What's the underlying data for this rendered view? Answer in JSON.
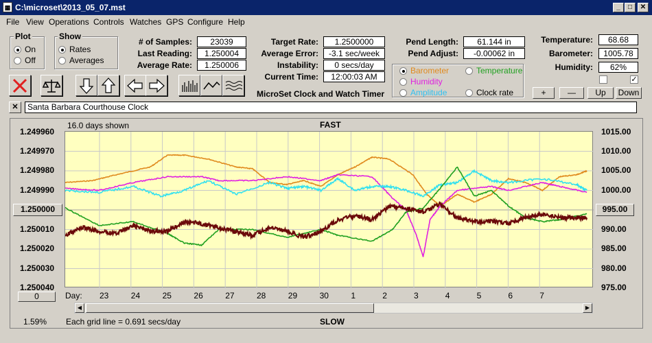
{
  "window": {
    "title": "C:\\microset\\2013_05_07.mst",
    "minimize": "_",
    "maximize": "□",
    "close": "✕"
  },
  "menu": [
    "File",
    "View",
    "Operations",
    "Controls",
    "Watches",
    "GPS",
    "Configure",
    "Help"
  ],
  "plot_group": {
    "label": "Plot",
    "on": "On",
    "off": "Off"
  },
  "show_group": {
    "label": "Show",
    "rates": "Rates",
    "averages": "Averages"
  },
  "stats": {
    "samples_label": "# of Samples:",
    "samples": "23039",
    "last_label": "Last Reading:",
    "last": "1.250004",
    "avg_rate_label": "Average Rate:",
    "avg_rate": "1.250006",
    "target_label": "Target Rate:",
    "target": "1.2500000",
    "avg_err_label": "Average Error:",
    "avg_err": "-3.1 sec/week",
    "instab_label": "Instability:",
    "instab": "0 secs/day",
    "time_label": "Current Time:",
    "time": "12:00:03 AM",
    "pend_len_label": "Pend Length:",
    "pend_len": "61.144 in",
    "pend_adj_label": "Pend Adjust:",
    "pend_adj": "-0.00062 in",
    "temp_label": "Temperature:",
    "temp": "68.68",
    "baro_label": "Barometer:",
    "baro": "1005.78",
    "hum_label": "Humidity:",
    "hum": "62%"
  },
  "app_caption": "MicroSet Clock and Watch Timer",
  "sensor_radios": {
    "barometer": "Barometer",
    "temperature": "Temperature",
    "humidity": "Humidity",
    "amplitude": "Amplitude",
    "clock_rate": "Clock rate"
  },
  "sensor_buttons": {
    "plus": "+",
    "minus": "—",
    "up": "Up",
    "down": "Down"
  },
  "clock_name": "Santa Barbara Courthouse Clock",
  "close_small": "✕",
  "colors": {
    "barometer": "#e08a1e",
    "humidity": "#e020e0",
    "amplitude": "#30e0f0",
    "temperature": "#20a020",
    "rate": "#6b0a0a"
  },
  "chart_data": {
    "type": "line",
    "top_label": "FAST",
    "bottom_label": "SLOW",
    "days_shown": "16.0 days shown",
    "grid_note": "Each grid line = 0.691 secs/day",
    "percent": "1.59%",
    "left_button": "1.250000",
    "right_button": "995.00",
    "bottom_button": "0",
    "day_label": "Day:",
    "days": [
      "23",
      "24",
      "25",
      "26",
      "27",
      "28",
      "29",
      "30",
      "1",
      "2",
      "3",
      "4",
      "5",
      "6",
      "7"
    ],
    "y_left": {
      "ticks": [
        "1.249960",
        "1.249970",
        "1.249980",
        "1.249990",
        "1.250000",
        "1.250010",
        "1.250020",
        "1.250030",
        "1.250040"
      ],
      "ylim": [
        1.24996,
        1.25004
      ]
    },
    "y_right": {
      "ticks": [
        "1015.00",
        "1010.00",
        "1005.00",
        "1000.00",
        "995.00",
        "990.00",
        "985.00",
        "980.00",
        "975.00"
      ],
      "ylim": [
        975,
        1015
      ]
    },
    "series": [
      {
        "name": "Barometer",
        "axis": "right",
        "color": "#e08a1e",
        "x": [
          0,
          0.8,
          1.5,
          2.5,
          3.0,
          3.5,
          4.2,
          5.0,
          5.5,
          6.0,
          6.5,
          7.0,
          7.5,
          8.0,
          8.5,
          9.0,
          9.5,
          10.2,
          10.6,
          11.0,
          11.5,
          12.0,
          12.5,
          13.0,
          13.5,
          14.0,
          14.5,
          15.0,
          15.3
        ],
        "y": [
          1002,
          1002.5,
          1004,
          1006,
          1009,
          1009,
          1008,
          1006,
          1005.5,
          1002,
          1001.5,
          1002.5,
          1001,
          1004,
          1006,
          1008.5,
          1008,
          1004,
          999,
          996,
          999,
          997,
          999,
          1003,
          1002,
          1000,
          1003.5,
          1004,
          1005
        ]
      },
      {
        "name": "Humidity",
        "axis": "left",
        "color": "#e020e0",
        "x": [
          0,
          1.0,
          2.0,
          3.0,
          4.0,
          4.5,
          5.5,
          6.5,
          7.5,
          8.0,
          9.0,
          9.6,
          10.0,
          10.3,
          10.5,
          10.7,
          11.0,
          11.5,
          12.5,
          13.0,
          14.0,
          14.5,
          15.3
        ],
        "y": [
          1.249989,
          1.24999,
          1.249986,
          1.249983,
          1.249983,
          1.249985,
          1.249985,
          1.249983,
          1.249985,
          1.249982,
          1.249983,
          1.249994,
          1.25,
          1.250013,
          1.250024,
          1.250005,
          1.249998,
          1.24999,
          1.249988,
          1.24999,
          1.249986,
          1.249988,
          1.249991
        ]
      },
      {
        "name": "Amplitude",
        "axis": "left",
        "color": "#30e0f0",
        "x": [
          0,
          1.0,
          2.0,
          2.8,
          3.5,
          4.2,
          5.0,
          6.0,
          6.5,
          7.0,
          7.5,
          8.0,
          8.5,
          9.0,
          9.5,
          10.0,
          10.5,
          11.0,
          11.5,
          12.0,
          12.5,
          13.0,
          14.0,
          15.0,
          15.3
        ],
        "y": [
          1.24999,
          1.249991,
          1.249988,
          1.249993,
          1.24999,
          1.249985,
          1.249992,
          1.249986,
          1.249989,
          1.249988,
          1.24999,
          1.249984,
          1.24999,
          1.249988,
          1.249988,
          1.24999,
          1.249993,
          1.249987,
          1.249986,
          1.24998,
          1.249985,
          1.249986,
          1.249984,
          1.249987,
          1.24999
        ]
      },
      {
        "name": "Temperature",
        "axis": "left",
        "color": "#20a020",
        "x": [
          0,
          1.0,
          2.0,
          3.0,
          3.5,
          4.0,
          4.5,
          5.5,
          6.5,
          7.5,
          8.0,
          9.0,
          9.6,
          10.0,
          10.5,
          11.0,
          11.5,
          12.0,
          12.5,
          13.0,
          13.5,
          14.0,
          14.5,
          15.3
        ],
        "y": [
          1.249999,
          1.250008,
          1.250006,
          1.250012,
          1.250017,
          1.250018,
          1.25001,
          1.25001,
          1.250014,
          1.25001,
          1.250013,
          1.250016,
          1.25001,
          1.250001,
          1.249999,
          1.249989,
          1.249978,
          1.249993,
          1.24999,
          1.249998,
          1.250004,
          1.250006,
          1.250005,
          1.250002
        ]
      },
      {
        "name": "Clock rate",
        "axis": "left",
        "color": "#6b0a0a",
        "x": [
          0,
          0.5,
          1.0,
          1.5,
          2.0,
          2.5,
          3.0,
          3.5,
          4.0,
          4.5,
          5.0,
          5.5,
          6.0,
          6.5,
          7.0,
          7.5,
          8.0,
          8.5,
          9.0,
          9.5,
          10.0,
          10.5,
          11.0,
          11.5,
          12.0,
          12.5,
          13.0,
          13.5,
          14.0,
          14.5,
          15.0,
          15.3
        ],
        "y": [
          1.250013,
          1.250009,
          1.250011,
          1.250012,
          1.250008,
          1.250011,
          1.250011,
          1.250006,
          1.250007,
          1.250009,
          1.250011,
          1.250013,
          1.250009,
          1.250011,
          1.250014,
          1.250011,
          1.250005,
          1.250003,
          1.250005,
          1.249998,
          1.249999,
          1.250001,
          1.249997,
          1.250004,
          1.250006,
          1.250006,
          1.250007,
          1.250004,
          1.250002,
          1.250004,
          1.250004,
          1.250004
        ]
      }
    ]
  }
}
